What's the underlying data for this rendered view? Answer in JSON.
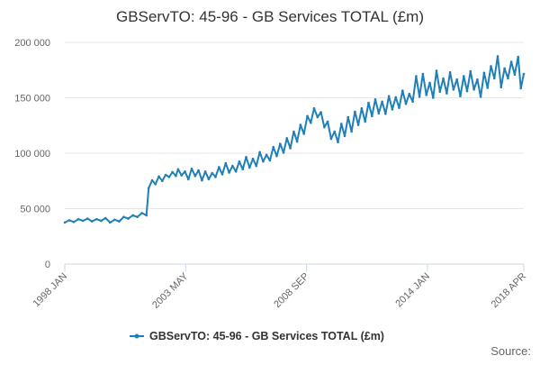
{
  "chart_data": {
    "type": "line",
    "title": "GBServTO: 45-96 - GB Services TOTAL (£m)",
    "xlabel": "",
    "ylabel": "",
    "ylim": [
      0,
      200000
    ],
    "yticks": [
      {
        "value": 0,
        "label": "0"
      },
      {
        "value": 50000,
        "label": "50 000"
      },
      {
        "value": 100000,
        "label": "100 000"
      },
      {
        "value": 150000,
        "label": "150 000"
      },
      {
        "value": 200000,
        "label": "200 000"
      }
    ],
    "xrange": [
      1998.0,
      2018.25
    ],
    "xticks": [
      {
        "value": 1998.0,
        "label": "1998 JAN"
      },
      {
        "value": 2003.333,
        "label": "2003 MAY"
      },
      {
        "value": 2008.667,
        "label": "2008 SEP"
      },
      {
        "value": 2014.0,
        "label": "2014 JAN"
      },
      {
        "value": 2018.25,
        "label": "2018 APR"
      }
    ],
    "grid": true,
    "legend_position": "bottom",
    "series": [
      {
        "name": "GBServTO: 45-96 - GB Services TOTAL (£m)",
        "color": "#1f7fb8",
        "points": [
          [
            1998.0,
            37500
          ],
          [
            1998.2,
            39500
          ],
          [
            1998.4,
            38000
          ],
          [
            1998.6,
            40500
          ],
          [
            1998.8,
            39000
          ],
          [
            1999.0,
            41000
          ],
          [
            1999.2,
            38500
          ],
          [
            1999.4,
            40500
          ],
          [
            1999.6,
            39000
          ],
          [
            1999.8,
            41500
          ],
          [
            2000.0,
            37500
          ],
          [
            2000.2,
            40000
          ],
          [
            2000.4,
            38500
          ],
          [
            2000.6,
            42500
          ],
          [
            2000.8,
            41000
          ],
          [
            2001.0,
            44000
          ],
          [
            2001.2,
            42500
          ],
          [
            2001.4,
            46000
          ],
          [
            2001.6,
            44000
          ],
          [
            2001.7,
            68500
          ],
          [
            2001.85,
            75500
          ],
          [
            2002.0,
            72000
          ],
          [
            2002.15,
            79000
          ],
          [
            2002.3,
            75000
          ],
          [
            2002.45,
            80500
          ],
          [
            2002.6,
            78500
          ],
          [
            2002.75,
            83000
          ],
          [
            2002.9,
            79500
          ],
          [
            2003.0,
            85500
          ],
          [
            2003.15,
            80000
          ],
          [
            2003.3,
            83500
          ],
          [
            2003.45,
            76500
          ],
          [
            2003.6,
            86000
          ],
          [
            2003.75,
            79500
          ],
          [
            2003.9,
            84500
          ],
          [
            2004.05,
            75500
          ],
          [
            2004.2,
            83500
          ],
          [
            2004.35,
            76500
          ],
          [
            2004.5,
            82000
          ],
          [
            2004.65,
            78500
          ],
          [
            2004.8,
            87500
          ],
          [
            2004.95,
            81000
          ],
          [
            2005.1,
            91000
          ],
          [
            2005.25,
            82500
          ],
          [
            2005.4,
            88500
          ],
          [
            2005.55,
            83500
          ],
          [
            2005.7,
            92500
          ],
          [
            2005.85,
            85500
          ],
          [
            2006.0,
            96500
          ],
          [
            2006.15,
            87000
          ],
          [
            2006.3,
            95000
          ],
          [
            2006.45,
            88500
          ],
          [
            2006.6,
            101000
          ],
          [
            2006.75,
            92500
          ],
          [
            2006.9,
            98500
          ],
          [
            2007.05,
            93500
          ],
          [
            2007.2,
            105500
          ],
          [
            2007.35,
            97500
          ],
          [
            2007.5,
            108500
          ],
          [
            2007.65,
            100500
          ],
          [
            2007.8,
            113500
          ],
          [
            2007.95,
            104500
          ],
          [
            2008.1,
            119500
          ],
          [
            2008.25,
            110500
          ],
          [
            2008.4,
            125500
          ],
          [
            2008.55,
            117500
          ],
          [
            2008.7,
            133500
          ],
          [
            2008.85,
            127500
          ],
          [
            2009.0,
            140500
          ],
          [
            2009.15,
            132500
          ],
          [
            2009.3,
            137000
          ],
          [
            2009.45,
            123500
          ],
          [
            2009.6,
            128500
          ],
          [
            2009.75,
            113000
          ],
          [
            2009.9,
            119500
          ],
          [
            2010.05,
            110000
          ],
          [
            2010.2,
            126500
          ],
          [
            2010.35,
            115500
          ],
          [
            2010.5,
            132500
          ],
          [
            2010.65,
            119500
          ],
          [
            2010.8,
            137500
          ],
          [
            2010.95,
            125500
          ],
          [
            2011.1,
            140500
          ],
          [
            2011.25,
            128500
          ],
          [
            2011.4,
            145500
          ],
          [
            2011.55,
            133500
          ],
          [
            2011.7,
            148500
          ],
          [
            2011.85,
            136000
          ],
          [
            2012.0,
            146500
          ],
          [
            2012.15,
            135500
          ],
          [
            2012.3,
            151500
          ],
          [
            2012.45,
            139500
          ],
          [
            2012.6,
            150500
          ],
          [
            2012.75,
            141000
          ],
          [
            2012.9,
            156500
          ],
          [
            2013.05,
            144500
          ],
          [
            2013.2,
            153500
          ],
          [
            2013.35,
            146500
          ],
          [
            2013.5,
            169500
          ],
          [
            2013.65,
            151000
          ],
          [
            2013.8,
            171500
          ],
          [
            2013.95,
            152500
          ],
          [
            2014.1,
            163500
          ],
          [
            2014.25,
            150000
          ],
          [
            2014.4,
            174500
          ],
          [
            2014.55,
            155500
          ],
          [
            2014.7,
            167500
          ],
          [
            2014.85,
            154000
          ],
          [
            2015.0,
            173000
          ],
          [
            2015.15,
            157500
          ],
          [
            2015.3,
            166500
          ],
          [
            2015.45,
            151500
          ],
          [
            2015.6,
            169500
          ],
          [
            2015.75,
            156000
          ],
          [
            2015.9,
            174000
          ],
          [
            2016.05,
            157500
          ],
          [
            2016.2,
            166500
          ],
          [
            2016.35,
            151000
          ],
          [
            2016.5,
            172500
          ],
          [
            2016.65,
            159000
          ],
          [
            2016.8,
            178500
          ],
          [
            2016.95,
            167500
          ],
          [
            2017.1,
            187500
          ],
          [
            2017.25,
            159500
          ],
          [
            2017.4,
            176500
          ],
          [
            2017.55,
            167500
          ],
          [
            2017.7,
            182500
          ],
          [
            2017.85,
            171000
          ],
          [
            2018.0,
            187000
          ],
          [
            2018.12,
            158500
          ],
          [
            2018.25,
            171500
          ]
        ]
      }
    ],
    "source_label": "Source:"
  }
}
